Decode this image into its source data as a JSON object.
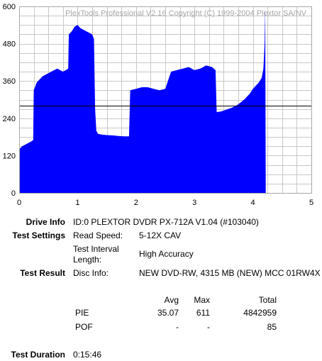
{
  "chart_data": {
    "type": "area",
    "watermark": "PlexTools Professional V2.16 Copyright (C) 1999-2004 Plextor SA/NV",
    "xlim": [
      0,
      5
    ],
    "ylim": [
      0,
      600
    ],
    "x_ticks": [
      "0",
      "1",
      "2",
      "3",
      "4",
      "5"
    ],
    "y_ticks": [
      "0",
      "120",
      "240",
      "360",
      "480",
      "600"
    ],
    "grid": true,
    "fill_color": "#0000ff",
    "threshold_line": 280,
    "series": [
      {
        "x": [
          0,
          0.05,
          0.1,
          0.15,
          0.2,
          0.24,
          0.25,
          0.3,
          0.35,
          0.4,
          0.45,
          0.5,
          0.55,
          0.6,
          0.65,
          0.7,
          0.75,
          0.8,
          0.84,
          0.85,
          0.9,
          0.95,
          1.0,
          1.05,
          1.1,
          1.15,
          1.2,
          1.25,
          1.28,
          1.3,
          1.32,
          1.35,
          1.4,
          1.5,
          1.6,
          1.7,
          1.8,
          1.88,
          1.9,
          2.0,
          2.1,
          2.2,
          2.3,
          2.4,
          2.5,
          2.6,
          2.7,
          2.8,
          2.9,
          3.0,
          3.1,
          3.2,
          3.3,
          3.36,
          3.38,
          3.45,
          3.55,
          3.65,
          3.75,
          3.85,
          3.95,
          4.0,
          4.05,
          4.1,
          4.15,
          4.18,
          4.2,
          4.21,
          4.22
        ],
        "values": [
          140,
          150,
          155,
          160,
          165,
          170,
          330,
          355,
          365,
          375,
          380,
          385,
          390,
          395,
          400,
          395,
          390,
          395,
          400,
          510,
          520,
          535,
          540,
          530,
          525,
          520,
          515,
          510,
          495,
          270,
          200,
          190,
          188,
          186,
          185,
          183,
          182,
          182,
          330,
          335,
          340,
          340,
          335,
          330,
          335,
          390,
          395,
          400,
          405,
          395,
          400,
          410,
          405,
          395,
          260,
          262,
          268,
          275,
          285,
          300,
          320,
          335,
          345,
          355,
          370,
          400,
          480,
          600,
          0
        ]
      }
    ]
  },
  "info": {
    "drive_label": "Drive Info",
    "drive_value": "ID:0 PLEXTOR DVDR PX-712A V1.04 (#103040)",
    "settings_label": "Test Settings",
    "read_speed_label": "Read Speed:",
    "read_speed_value": "5-12X CAV",
    "interval_label_1": "Test Interval",
    "interval_label_2": "Length:",
    "interval_value": "High Accuracy",
    "result_label": "Test Result",
    "disc_label": "Disc Info:",
    "disc_value": "NEW DVD-RW, 4315 MB (NEW) MCC 01RW4X"
  },
  "table": {
    "headers": [
      "Avg",
      "Max",
      "Total"
    ],
    "rows": [
      {
        "name": "PIE",
        "avg": "35.07",
        "max": "611",
        "total": "4842959"
      },
      {
        "name": "POF",
        "avg": "-",
        "max": "-",
        "total": "85"
      }
    ]
  },
  "duration": {
    "label": "Test Duration",
    "value": "0:15:46"
  }
}
